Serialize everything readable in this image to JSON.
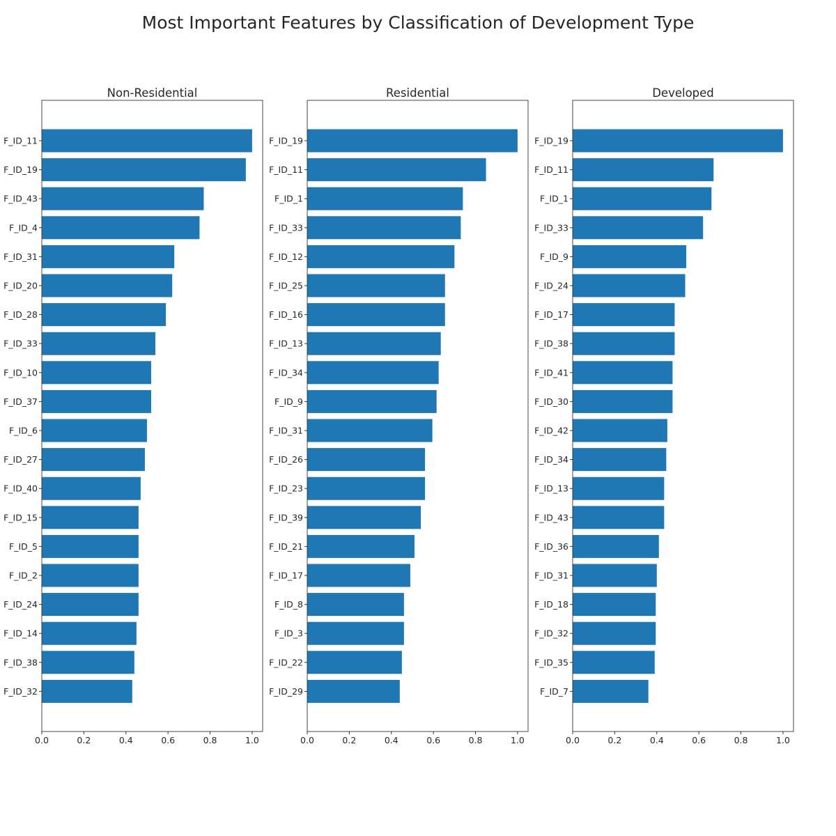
{
  "figure": {
    "title": "Most Important Features by Classification of Development Type"
  },
  "colors": {
    "bar": "#1f77b4",
    "axis": "#333333",
    "text": "#262626"
  },
  "chart_data": [
    {
      "type": "bar",
      "orientation": "horizontal",
      "title": "Non-Residential",
      "xlabel": "",
      "ylabel": "",
      "xlim": [
        0,
        1.05
      ],
      "xticks": [
        0.0,
        0.2,
        0.4,
        0.6,
        0.8,
        1.0
      ],
      "xtick_labels": [
        "0.0",
        "0.2",
        "0.4",
        "0.6",
        "0.8",
        "1.0"
      ],
      "categories": [
        "F_ID_11",
        "F_ID_19",
        "F_ID_43",
        "F_ID_4",
        "F_ID_31",
        "F_ID_20",
        "F_ID_28",
        "F_ID_33",
        "F_ID_10",
        "F_ID_37",
        "F_ID_6",
        "F_ID_27",
        "F_ID_40",
        "F_ID_15",
        "F_ID_5",
        "F_ID_2",
        "F_ID_24",
        "F_ID_14",
        "F_ID_38",
        "F_ID_32"
      ],
      "values": [
        1.0,
        0.97,
        0.77,
        0.75,
        0.63,
        0.62,
        0.59,
        0.54,
        0.52,
        0.52,
        0.5,
        0.49,
        0.47,
        0.46,
        0.46,
        0.46,
        0.46,
        0.45,
        0.44,
        0.43
      ]
    },
    {
      "type": "bar",
      "orientation": "horizontal",
      "title": "Residential",
      "xlabel": "",
      "ylabel": "",
      "xlim": [
        0,
        1.05
      ],
      "xticks": [
        0.0,
        0.2,
        0.4,
        0.6,
        0.8,
        1.0
      ],
      "xtick_labels": [
        "0.0",
        "0.2",
        "0.4",
        "0.6",
        "0.8",
        "1.0"
      ],
      "categories": [
        "F_ID_19",
        "F_ID_11",
        "F_ID_1",
        "F_ID_33",
        "F_ID_12",
        "F_ID_25",
        "F_ID_16",
        "F_ID_13",
        "F_ID_34",
        "F_ID_9",
        "F_ID_31",
        "F_ID_26",
        "F_ID_23",
        "F_ID_39",
        "F_ID_21",
        "F_ID_17",
        "F_ID_8",
        "F_ID_3",
        "F_ID_22",
        "F_ID_29"
      ],
      "values": [
        1.0,
        0.85,
        0.74,
        0.73,
        0.7,
        0.655,
        0.655,
        0.635,
        0.625,
        0.615,
        0.595,
        0.56,
        0.56,
        0.54,
        0.51,
        0.49,
        0.46,
        0.46,
        0.45,
        0.44
      ]
    },
    {
      "type": "bar",
      "orientation": "horizontal",
      "title": "Developed",
      "xlabel": "",
      "ylabel": "",
      "xlim": [
        0,
        1.05
      ],
      "xticks": [
        0.0,
        0.2,
        0.4,
        0.6,
        0.8,
        1.0
      ],
      "xtick_labels": [
        "0.0",
        "0.2",
        "0.4",
        "0.6",
        "0.8",
        "1.0"
      ],
      "categories": [
        "F_ID_19",
        "F_ID_11",
        "F_ID_1",
        "F_ID_33",
        "F_ID_9",
        "F_ID_24",
        "F_ID_17",
        "F_ID_38",
        "F_ID_41",
        "F_ID_30",
        "F_ID_42",
        "F_ID_34",
        "F_ID_13",
        "F_ID_43",
        "F_ID_36",
        "F_ID_31",
        "F_ID_18",
        "F_ID_32",
        "F_ID_35",
        "F_ID_7"
      ],
      "values": [
        1.0,
        0.67,
        0.66,
        0.62,
        0.54,
        0.535,
        0.485,
        0.485,
        0.475,
        0.475,
        0.45,
        0.445,
        0.435,
        0.435,
        0.41,
        0.4,
        0.395,
        0.395,
        0.39,
        0.36
      ]
    }
  ]
}
